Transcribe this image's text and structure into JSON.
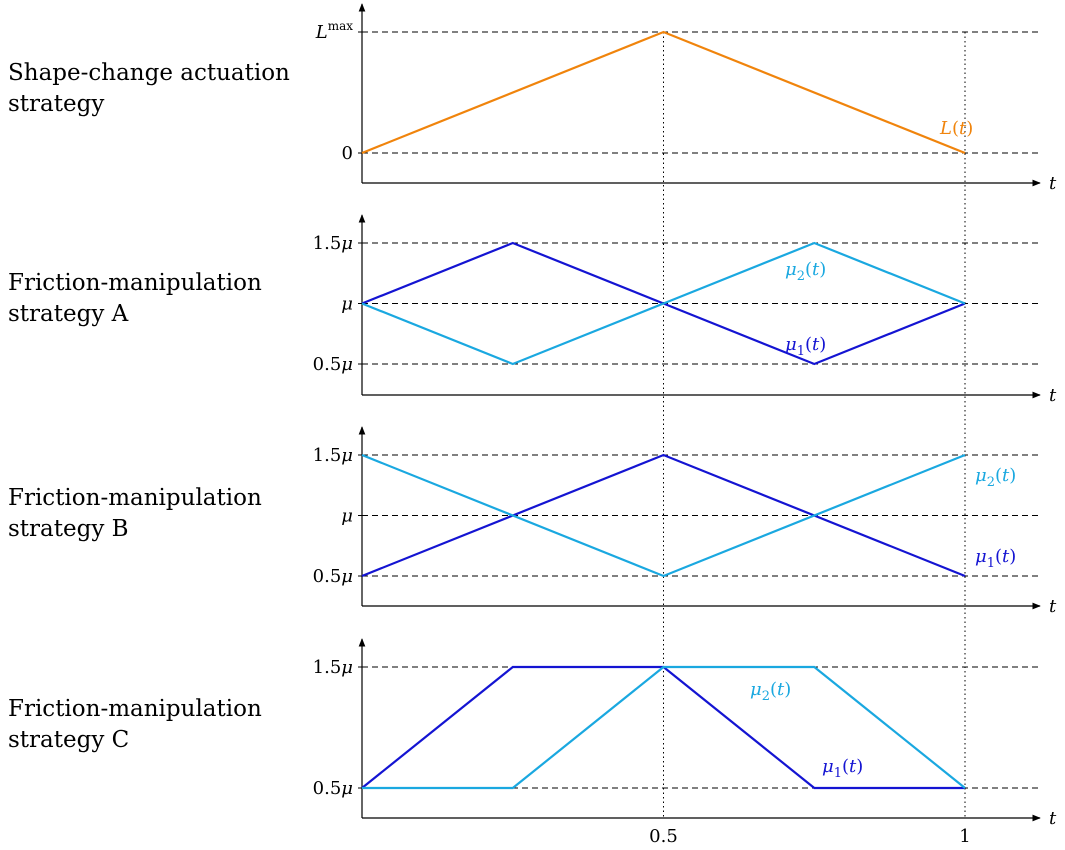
{
  "colors": {
    "shape": "#f0840c",
    "mu1": "#1414d2",
    "mu2": "#1aa8e0",
    "axis": "#000000",
    "dashed": "#000000",
    "dotted": "#000000"
  },
  "chart_data": [
    {
      "type": "line",
      "label_lines": [
        "Shape-change actuation",
        "strategy"
      ],
      "xlabel": "t",
      "xlim": [
        0,
        1
      ],
      "ylim": [
        0,
        1
      ],
      "yticks": [
        {
          "value": 0,
          "label": "0"
        },
        {
          "value": 1,
          "label": "L^max"
        }
      ],
      "guides_y": [
        0,
        1
      ],
      "series": [
        {
          "name": "L(t)",
          "color_key": "shape",
          "x": [
            0,
            0.5,
            1
          ],
          "y": [
            0,
            1,
            0
          ]
        }
      ]
    },
    {
      "type": "line",
      "label_lines": [
        "Friction-manipulation",
        "strategy A"
      ],
      "xlabel": "t",
      "xlim": [
        0,
        1
      ],
      "ylim": [
        0.5,
        1.5
      ],
      "yticks": [
        {
          "value": 0.5,
          "label": "0.5μ"
        },
        {
          "value": 1.0,
          "label": "μ"
        },
        {
          "value": 1.5,
          "label": "1.5μ"
        }
      ],
      "guides_y": [
        0.5,
        1.0,
        1.5
      ],
      "series": [
        {
          "name": "μ1(t)",
          "color_key": "mu1",
          "x": [
            0,
            0.25,
            0.5,
            0.75,
            1
          ],
          "y": [
            1,
            1.5,
            1,
            0.5,
            1
          ]
        },
        {
          "name": "μ2(t)",
          "color_key": "mu2",
          "x": [
            0,
            0.25,
            0.5,
            0.75,
            1
          ],
          "y": [
            1,
            0.5,
            1,
            1.5,
            1
          ]
        }
      ]
    },
    {
      "type": "line",
      "label_lines": [
        "Friction-manipulation",
        "strategy B"
      ],
      "xlabel": "t",
      "xlim": [
        0,
        1
      ],
      "ylim": [
        0.5,
        1.5
      ],
      "yticks": [
        {
          "value": 0.5,
          "label": "0.5μ"
        },
        {
          "value": 1.0,
          "label": "μ"
        },
        {
          "value": 1.5,
          "label": "1.5μ"
        }
      ],
      "guides_y": [
        0.5,
        1.0,
        1.5
      ],
      "series": [
        {
          "name": "μ1(t)",
          "color_key": "mu1",
          "x": [
            0,
            0.5,
            1
          ],
          "y": [
            0.5,
            1.5,
            0.5
          ]
        },
        {
          "name": "μ2(t)",
          "color_key": "mu2",
          "x": [
            0,
            0.5,
            1
          ],
          "y": [
            1.5,
            0.5,
            1.5
          ]
        }
      ]
    },
    {
      "type": "line",
      "label_lines": [
        "Friction-manipulation",
        "strategy C"
      ],
      "xlabel": "t",
      "xlim": [
        0,
        1
      ],
      "ylim": [
        0.5,
        1.5
      ],
      "yticks": [
        {
          "value": 0.5,
          "label": "0.5μ"
        },
        {
          "value": 1.5,
          "label": "1.5μ"
        }
      ],
      "xticks": [
        {
          "value": 0.5,
          "label": "0.5"
        },
        {
          "value": 1,
          "label": "1"
        }
      ],
      "guides_y": [
        0.5,
        1.5
      ],
      "series": [
        {
          "name": "μ1(t)",
          "color_key": "mu1",
          "x": [
            0,
            0.25,
            0.5,
            0.75,
            1
          ],
          "y": [
            0.5,
            1.5,
            1.5,
            0.5,
            0.5
          ]
        },
        {
          "name": "μ2(t)",
          "color_key": "mu2",
          "x": [
            0,
            0.25,
            0.5,
            0.75,
            1
          ],
          "y": [
            0.5,
            0.5,
            1.5,
            1.5,
            0.5
          ]
        }
      ]
    }
  ],
  "guides_x": [
    0.5,
    1
  ]
}
